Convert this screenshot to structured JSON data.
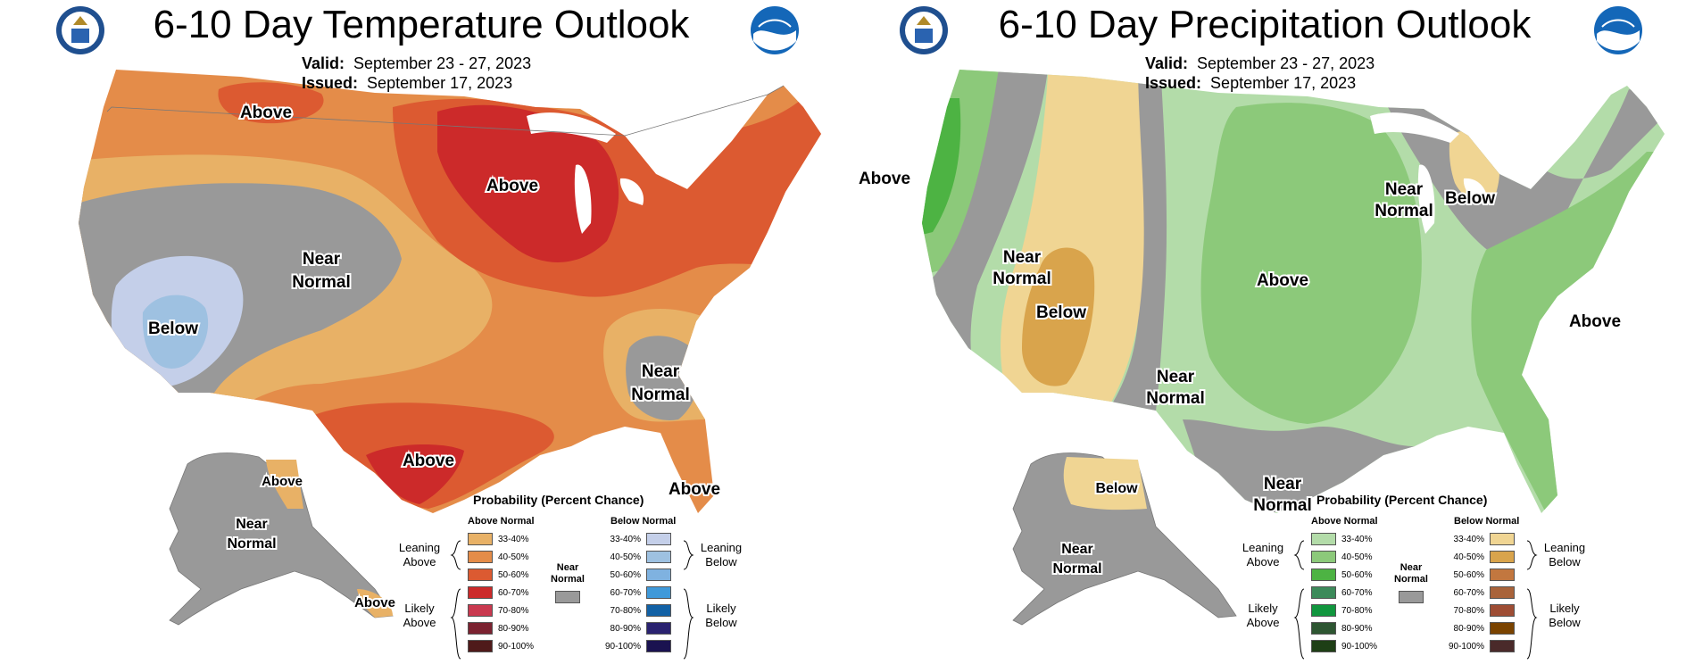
{
  "temperature": {
    "title": "6-10 Day Temperature Outlook",
    "valid_label": "Valid:",
    "valid_value": "September 23 - 27, 2023",
    "issued_label": "Issued:",
    "issued_value": "September 17, 2023",
    "region_labels": {
      "above_nw": "Above",
      "above_midwest": "Above",
      "near_normal_west_1": "Near",
      "near_normal_west_2": "Normal",
      "below_sw": "Below",
      "near_normal_se_1": "Near",
      "near_normal_se_2": "Normal",
      "above_texas": "Above",
      "above_florida": "Above",
      "above_alaska_se": "Above",
      "near_normal_alaska_1": "Near",
      "near_normal_alaska_2": "Normal",
      "above_alaska_south": "Above"
    },
    "colors": {
      "above_33_40": "#e8b166",
      "above_40_50": "#e48c49",
      "above_50_60": "#dc5a31",
      "above_60_70": "#cc2a2a",
      "above_70_80": "#c9394f",
      "above_80_90": "#7b2230",
      "above_90_100": "#4f1a1a",
      "below_33_40": "#c4cfe9",
      "below_40_50": "#9ec1e1",
      "below_50_60": "#7fb2e0",
      "below_60_70": "#3f99d9",
      "below_70_80": "#1261a5",
      "below_80_90": "#2a2270",
      "below_90_100": "#1a1250",
      "near": "#999999"
    },
    "legend": {
      "title": "Probability (Percent Chance)",
      "above_head": "Above Normal",
      "below_head": "Below Normal",
      "near_1": "Near",
      "near_2": "Normal",
      "leaning_above_1": "Leaning",
      "leaning_above_2": "Above",
      "likely_above_1": "Likely",
      "likely_above_2": "Above",
      "leaning_below_1": "Leaning",
      "leaning_below_2": "Below",
      "likely_below_1": "Likely",
      "likely_below_2": "Below",
      "ranges": [
        "33-40%",
        "40-50%",
        "50-60%",
        "60-70%",
        "70-80%",
        "80-90%",
        "90-100%"
      ]
    }
  },
  "precipitation": {
    "title": "6-10 Day Precipitation Outlook",
    "valid_label": "Valid:",
    "valid_value": "September 23 - 27, 2023",
    "issued_label": "Issued:",
    "issued_value": "September 17, 2023",
    "region_labels": {
      "above_nw": "Above",
      "near_normal_nw_1": "Near",
      "near_normal_nw_2": "Normal",
      "below_sw": "Below",
      "near_normal_4c_1": "Near",
      "near_normal_4c_2": "Normal",
      "above_plains": "Above",
      "near_normal_gl_1": "Near",
      "near_normal_gl_2": "Normal",
      "below_mi": "Below",
      "above_east": "Above",
      "near_normal_gulf_1": "Near",
      "near_normal_gulf_2": "Normal",
      "below_alaska": "Below",
      "near_normal_alaska_1": "Near",
      "near_normal_alaska_2": "Normal"
    },
    "colors": {
      "above_33_40": "#b3dca9",
      "above_40_50": "#8cc97a",
      "above_50_60": "#4db343",
      "above_60_70": "#3c8a5a",
      "above_70_80": "#11963e",
      "above_80_90": "#2e5632",
      "above_90_100": "#1e3f16",
      "below_33_40": "#f0d593",
      "below_40_50": "#d9a44c",
      "below_50_60": "#c2773f",
      "below_60_70": "#a9633a",
      "below_70_80": "#9e4d34",
      "below_80_90": "#7a4300",
      "below_90_100": "#4a2a2a",
      "near": "#999999"
    },
    "legend": {
      "title": "Probability (Percent Chance)",
      "above_head": "Above Normal",
      "below_head": "Below Normal",
      "near_1": "Near",
      "near_2": "Normal",
      "leaning_above_1": "Leaning",
      "leaning_above_2": "Above",
      "likely_above_1": "Likely",
      "likely_above_2": "Above",
      "leaning_below_1": "Leaning",
      "leaning_below_2": "Below",
      "likely_below_1": "Likely",
      "likely_below_2": "Below",
      "ranges": [
        "33-40%",
        "40-50%",
        "50-60%",
        "60-70%",
        "70-80%",
        "80-90%",
        "90-100%"
      ]
    }
  },
  "logos": {
    "left": "doc-seal-icon",
    "right": "noaa-logo-icon"
  }
}
